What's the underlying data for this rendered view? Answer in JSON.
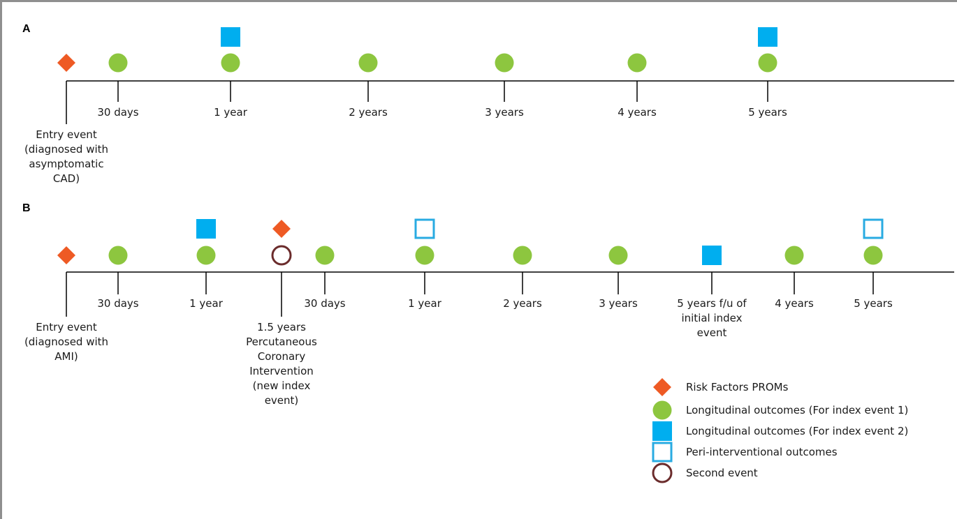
{
  "colors": {
    "risk_factors": "#EE5A24",
    "longitudinal_1": "#8DC63F",
    "longitudinal_2": "#00AEEF",
    "peri_interventional": "#29ABE2",
    "second_event": "#6B2C2C",
    "axis": "#000000"
  },
  "panel_a": {
    "letter": "A",
    "ticks": [
      {
        "key": "entry",
        "lines": [
          "Entry event",
          "(diagnosed with",
          "asymptomatic",
          "CAD)"
        ]
      },
      {
        "key": "d30",
        "lines": [
          "30 days"
        ]
      },
      {
        "key": "y1",
        "lines": [
          "1 year"
        ]
      },
      {
        "key": "y2",
        "lines": [
          "2 years"
        ]
      },
      {
        "key": "y3",
        "lines": [
          "3 years"
        ]
      },
      {
        "key": "y4",
        "lines": [
          "4 years"
        ]
      },
      {
        "key": "y5",
        "lines": [
          "5 years"
        ]
      }
    ],
    "events": [
      {
        "tick": "entry",
        "markers": [
          "risk_factors"
        ]
      },
      {
        "tick": "d30",
        "markers": [
          "longitudinal_1"
        ]
      },
      {
        "tick": "y1",
        "markers": [
          "longitudinal_1",
          "longitudinal_2"
        ]
      },
      {
        "tick": "y2",
        "markers": [
          "longitudinal_1"
        ]
      },
      {
        "tick": "y3",
        "markers": [
          "longitudinal_1"
        ]
      },
      {
        "tick": "y4",
        "markers": [
          "longitudinal_1"
        ]
      },
      {
        "tick": "y5",
        "markers": [
          "longitudinal_1",
          "longitudinal_2"
        ]
      }
    ]
  },
  "panel_b": {
    "letter": "B",
    "ticks": [
      {
        "key": "entry",
        "lines": [
          "Entry event",
          "(diagnosed with",
          "AMI)"
        ]
      },
      {
        "key": "d30",
        "lines": [
          "30 days"
        ]
      },
      {
        "key": "y1",
        "lines": [
          "1 year"
        ]
      },
      {
        "key": "pci",
        "lines": [
          "1.5 years",
          "Percutaneous",
          "Coronary",
          "Intervention",
          "(new index",
          "event)"
        ]
      },
      {
        "key": "d30b",
        "lines": [
          "30 days"
        ]
      },
      {
        "key": "y1b",
        "lines": [
          "1 year"
        ]
      },
      {
        "key": "y2b",
        "lines": [
          "2 years"
        ]
      },
      {
        "key": "y3b",
        "lines": [
          "3 years"
        ]
      },
      {
        "key": "fu5",
        "lines": [
          "5 years f/u of",
          "initial index",
          "event"
        ]
      },
      {
        "key": "y4b",
        "lines": [
          "4 years"
        ]
      },
      {
        "key": "y5b",
        "lines": [
          "5 years"
        ]
      }
    ],
    "events": [
      {
        "tick": "entry",
        "markers": [
          "risk_factors"
        ]
      },
      {
        "tick": "d30",
        "markers": [
          "longitudinal_1"
        ]
      },
      {
        "tick": "y1",
        "markers": [
          "longitudinal_1",
          "longitudinal_2"
        ]
      },
      {
        "tick": "pci",
        "markers": [
          "second_event",
          "risk_factors"
        ]
      },
      {
        "tick": "d30b",
        "markers": [
          "longitudinal_1"
        ]
      },
      {
        "tick": "y1b",
        "markers": [
          "longitudinal_1",
          "peri_interventional"
        ]
      },
      {
        "tick": "y2b",
        "markers": [
          "longitudinal_1"
        ]
      },
      {
        "tick": "y3b",
        "markers": [
          "longitudinal_1"
        ]
      },
      {
        "tick": "fu5",
        "markers": [
          "longitudinal_2"
        ]
      },
      {
        "tick": "y4b",
        "markers": [
          "longitudinal_1"
        ]
      },
      {
        "tick": "y5b",
        "markers": [
          "longitudinal_1",
          "peri_interventional"
        ]
      }
    ]
  },
  "legend": [
    {
      "marker": "risk_factors",
      "label": "Risk Factors PROMs"
    },
    {
      "marker": "longitudinal_1",
      "label": "Longitudinal outcomes (For index event 1)"
    },
    {
      "marker": "longitudinal_2",
      "label": "Longitudinal outcomes (For index event 2)"
    },
    {
      "marker": "peri_interventional",
      "label": "Peri-interventional outcomes"
    },
    {
      "marker": "second_event",
      "label": "Second event"
    }
  ]
}
